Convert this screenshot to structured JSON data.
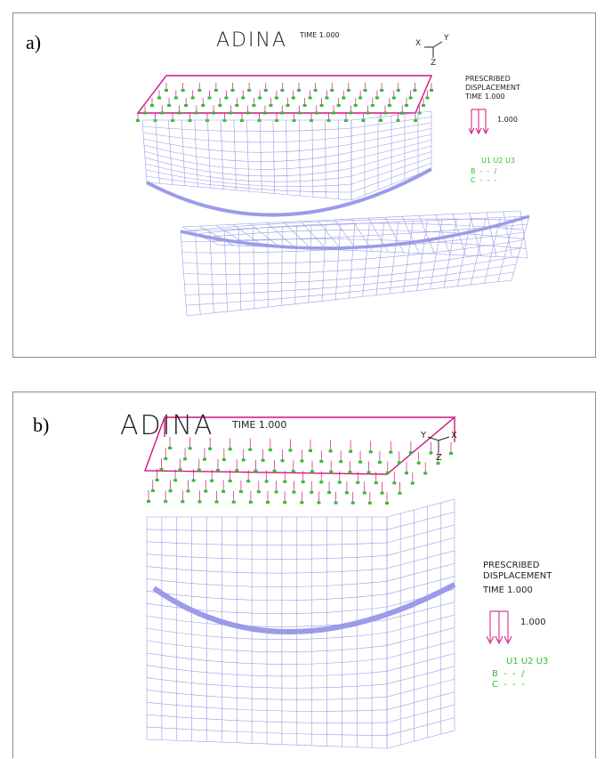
{
  "panels": [
    {
      "label": "a)",
      "title": "ADINA",
      "time": "TIME 1.000",
      "axes": {
        "a": "X",
        "b": "Y",
        "c": "Z"
      },
      "legend": {
        "line1": "PRESCRIBED",
        "line2": "DISPLACEMENT",
        "line3": "TIME 1.000",
        "magnitude": "1.000",
        "dof_header": "U1 U2 U3",
        "row_b": "B  -  -  /",
        "row_c": "C  -  -  -"
      }
    },
    {
      "label": "b)",
      "title": "ADINA",
      "time": "TIME 1.000",
      "axes": {
        "a": "Y",
        "b": "X",
        "c": "Z"
      },
      "legend": {
        "line1": "PRESCRIBED",
        "line2": "DISPLACEMENT",
        "line3": "TIME 1.000",
        "magnitude": "1.000",
        "dof_header": "U1 U2 U3",
        "row_b": "B  -  -  /",
        "row_c": "C  -  -  -"
      }
    }
  ],
  "colors": {
    "mesh": "#9b9bea",
    "load": "#d0157f",
    "node_b": "#2fbf2f",
    "border": "#8c8c8c",
    "marker": "#c87a2a"
  }
}
